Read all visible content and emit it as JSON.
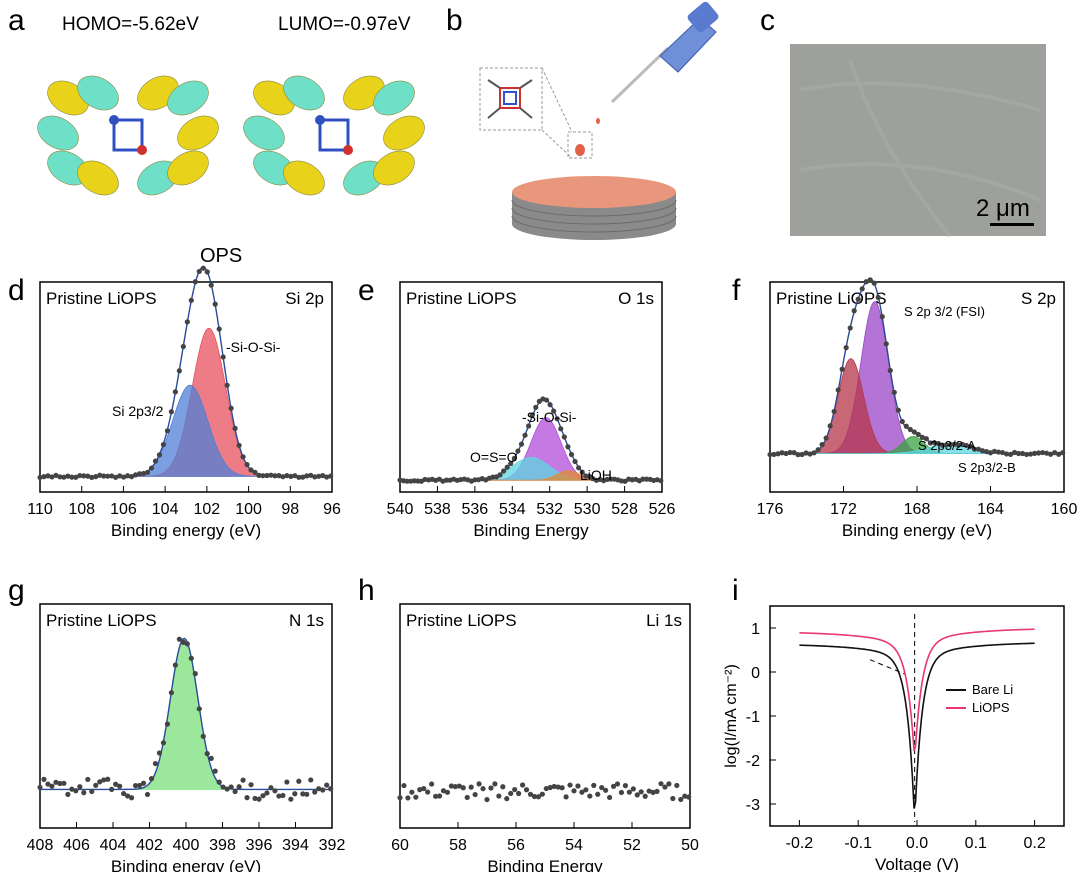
{
  "panels": {
    "a": {
      "letter": "a",
      "homo_label": "HOMO=-5.62eV",
      "lumo_label": "LUMO=-0.97eV",
      "caption": "OPS",
      "colors": {
        "lobe_yellow": "#e8d21a",
        "lobe_cyan": "#6fe0c8"
      }
    },
    "b": {
      "letter": "b",
      "colors": {
        "disk_top": "#e9977c",
        "disk_side": "#8a8a8a",
        "pipette": "#6f8fd8"
      }
    },
    "c": {
      "letter": "c",
      "scale_bar": "2 μm",
      "colors": {
        "surface": "#9ea09c"
      }
    }
  },
  "chart_data": [
    {
      "panel": "d",
      "type": "line",
      "title": "Pristine LiOPS",
      "corner_label": "Si 2p",
      "xlabel": "Binding energy (eV)",
      "ylabel": "",
      "xlim": [
        110,
        96
      ],
      "xticks": [
        110,
        108,
        106,
        104,
        102,
        100,
        98,
        96
      ],
      "annotations": [
        "-Si-O-Si-",
        "Si 2p3/2"
      ],
      "series": [
        {
          "name": "-Si-O-Si-",
          "kind": "peak",
          "center": 101.9,
          "height": 0.78,
          "width": 0.8,
          "color": "#e8505e"
        },
        {
          "name": "Si 2p3/2",
          "kind": "peak",
          "center": 102.8,
          "height": 0.48,
          "width": 0.85,
          "color": "#4f7fd6"
        }
      ],
      "baseline": 0.04
    },
    {
      "panel": "e",
      "type": "line",
      "title": "Pristine LiOPS",
      "corner_label": "O 1s",
      "xlabel": "Binding Energy",
      "ylabel": "",
      "xlim": [
        540,
        526
      ],
      "xticks": [
        540,
        538,
        536,
        534,
        532,
        530,
        528,
        526
      ],
      "annotations": [
        "-Si-O-Si-",
        "O=S=O",
        "LiOH"
      ],
      "series": [
        {
          "name": "-Si-O-Si-",
          "kind": "peak",
          "center": 532.2,
          "height": 0.33,
          "width": 0.8,
          "color": "#b04ed8"
        },
        {
          "name": "O=S=O",
          "kind": "peak",
          "center": 533.0,
          "height": 0.12,
          "width": 1.0,
          "color": "#5fd6df"
        },
        {
          "name": "LiOH",
          "kind": "peak",
          "center": 531.0,
          "height": 0.05,
          "width": 0.6,
          "color": "#e08a30"
        }
      ],
      "baseline": 0.02
    },
    {
      "panel": "f",
      "type": "line",
      "title": "Pristine LiOPS",
      "corner_label": "S 2p",
      "xlabel": "Binding energy (eV)",
      "ylabel": "",
      "xlim": [
        176,
        160
      ],
      "xticks": [
        176,
        172,
        168,
        164,
        160
      ],
      "annotations": [
        "S 2p 3/2 (FSI)",
        "S 2p3/2-A",
        "S 2p3/2-B"
      ],
      "series": [
        {
          "name": "S 2p 3/2 (FSI)",
          "kind": "peak",
          "center": 170.3,
          "height": 0.8,
          "width": 0.75,
          "color": "#9a45c8"
        },
        {
          "name": "",
          "kind": "peak",
          "center": 171.6,
          "height": 0.5,
          "width": 0.7,
          "color": "#b5364a"
        },
        {
          "name": "S 2p3/2-A",
          "kind": "peak",
          "center": 168.2,
          "height": 0.09,
          "width": 0.6,
          "color": "#3aa040"
        },
        {
          "name": "S 2p3/2-B",
          "kind": "peak",
          "center": 166.2,
          "height": 0.05,
          "width": 1.2,
          "color": "#5fd6df"
        }
      ],
      "baseline": 0.16
    },
    {
      "panel": "g",
      "type": "line",
      "title": "Pristine LiOPS",
      "corner_label": "N 1s",
      "xlabel": "Binding energy (eV)",
      "ylabel": "",
      "xlim": [
        408,
        392
      ],
      "xticks": [
        408,
        406,
        404,
        402,
        400,
        398,
        396,
        394,
        392
      ],
      "series": [
        {
          "name": "",
          "kind": "peak",
          "center": 400.1,
          "height": 0.74,
          "width": 0.75,
          "color": "#79e07c"
        }
      ],
      "baseline": 0.15,
      "noise": 0.05
    },
    {
      "panel": "h",
      "type": "scatter",
      "title": "Pristine LiOPS",
      "corner_label": "Li 1s",
      "xlabel": "Binding Energy",
      "ylabel": "",
      "xlim": [
        60,
        50
      ],
      "xticks": [
        60,
        58,
        56,
        54,
        52,
        50
      ],
      "series": [],
      "baseline": 0.14,
      "noise": 0.04
    },
    {
      "panel": "i",
      "type": "line",
      "title": "",
      "xlabel": "Voltage (V)",
      "ylabel": "log(I/mA cm⁻²)",
      "xlim": [
        -0.25,
        0.25
      ],
      "ylim": [
        -3.5,
        1.5
      ],
      "xticks": [
        -0.2,
        -0.1,
        0.0,
        0.1,
        0.2
      ],
      "xtick_labels": [
        "-0.2",
        "-0.1",
        "0.0",
        "0.1",
        "0.2"
      ],
      "yticks": [
        1,
        0,
        -1,
        -2,
        -3
      ],
      "ytick_labels": [
        "1",
        "0",
        "-1",
        "-2",
        "-3"
      ],
      "legend_position": "right",
      "series": [
        {
          "name": "Bare Li",
          "color": "#111111",
          "ecorr": -0.004,
          "a": 0.64,
          "b": 0.68,
          "k": 0.08,
          "bottom": -3.4
        },
        {
          "name": "LiOPS",
          "color": "#e8386e",
          "ecorr": -0.004,
          "a": 0.92,
          "b": 1.0,
          "k": 0.08,
          "bottom": -2.0
        }
      ]
    }
  ]
}
